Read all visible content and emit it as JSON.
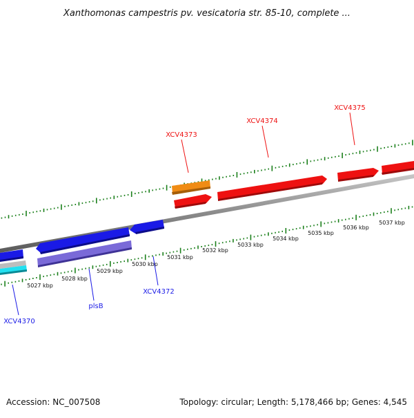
{
  "header": {
    "title": "Xanthomonas campestris pv. vesicatoria str. 85-10, complete ..."
  },
  "footer": {
    "accession": "Accession: NC_007508",
    "summary": "Topology: circular; Length: 5,178,466 bp; Genes: 4,545"
  },
  "colors": {
    "forward": "#ee1111",
    "reverse": "#1a1ae6",
    "orange": "#f08c14",
    "purple": "#7a6ad8",
    "cyan": "#22e0f0",
    "gray": "#bdbdbd",
    "tick": "#1a7f1a",
    "backbone": "#8c8c8c"
  },
  "scale": {
    "labels": [
      "5027 kbp",
      "5028 kbp",
      "5029 kbp",
      "5030 kbp",
      "5031 kbp",
      "5032 kbp",
      "5033 kbp",
      "5034 kbp",
      "5035 kbp",
      "5036 kbp",
      "5037 kbp"
    ]
  },
  "genes": {
    "forward": [
      {
        "label": "XCV4373",
        "color": "red"
      },
      {
        "label": "XCV4374",
        "color": "red"
      },
      {
        "label": "XCV4375",
        "color": "red"
      }
    ],
    "reverse": [
      {
        "label": "XCV4370",
        "color": "blue"
      },
      {
        "label": "plsB",
        "color": "blue"
      },
      {
        "label": "XCV4372",
        "color": "blue"
      }
    ]
  }
}
